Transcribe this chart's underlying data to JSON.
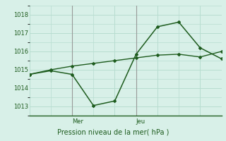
{
  "background_color": "#d8f0e8",
  "grid_color": "#b8ddd0",
  "line_color": "#1e5c1e",
  "vline_color": "#999999",
  "title": "Pression niveau de la mer( hPa )",
  "xlabel_mer": "Mer",
  "xlabel_jeu": "Jeu",
  "ylim": [
    1012.5,
    1018.5
  ],
  "yticks": [
    1013,
    1014,
    1015,
    1016,
    1017,
    1018
  ],
  "line1_x": [
    0,
    1,
    2,
    3,
    4,
    5,
    6,
    7,
    8,
    9
  ],
  "line1_y": [
    1014.75,
    1014.95,
    1014.75,
    1013.05,
    1013.3,
    1015.85,
    1017.35,
    1017.6,
    1016.2,
    1015.6
  ],
  "line2_x": [
    0,
    1,
    2,
    3,
    4,
    5,
    6,
    7,
    8,
    9
  ],
  "line2_y": [
    1014.75,
    1015.0,
    1015.2,
    1015.35,
    1015.5,
    1015.65,
    1015.8,
    1015.85,
    1015.7,
    1016.0
  ],
  "vline_x": [
    2,
    5
  ],
  "mer_tick": 2,
  "jeu_tick": 5,
  "xlim": [
    0,
    9
  ]
}
